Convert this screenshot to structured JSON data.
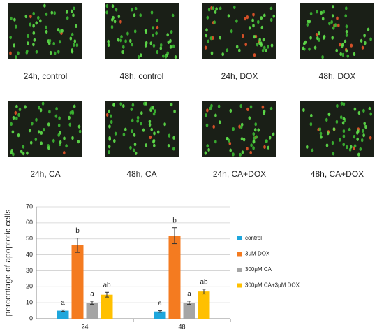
{
  "panels": [
    {
      "label": "24h, control"
    },
    {
      "label": "48h, control"
    },
    {
      "label": "24h, DOX"
    },
    {
      "label": "48h, DOX"
    },
    {
      "label": "24h, CA"
    },
    {
      "label": "48h, CA"
    },
    {
      "label": "24h, CA+DOX"
    },
    {
      "label": "48h, CA+DOX"
    }
  ],
  "chart_data": {
    "type": "bar",
    "y_label": "percentage of apoptotic cells",
    "categories": [
      "24",
      "48"
    ],
    "series": [
      {
        "name": "control",
        "color": "#1ea6dc",
        "values": [
          5,
          4.5
        ],
        "errors": [
          0.5,
          0.5
        ],
        "labels": [
          "a",
          "a"
        ]
      },
      {
        "name": "3μM DOX",
        "color": "#f47b20",
        "values": [
          46,
          52
        ],
        "errors": [
          4.5,
          5
        ],
        "labels": [
          "b",
          "b"
        ]
      },
      {
        "name": "300μM CA",
        "color": "#a5a5a5",
        "values": [
          10,
          10
        ],
        "errors": [
          1,
          1
        ],
        "labels": [
          "a",
          "a"
        ]
      },
      {
        "name": "300μM CA+3μM DOX",
        "color": "#ffc000",
        "values": [
          15,
          17
        ],
        "errors": [
          1.5,
          1.5
        ],
        "labels": [
          "ab",
          "ab"
        ]
      }
    ],
    "ylim": [
      0,
      70
    ],
    "yticks": [
      0,
      10,
      20,
      30,
      40,
      50,
      60,
      70
    ],
    "grid": true
  }
}
